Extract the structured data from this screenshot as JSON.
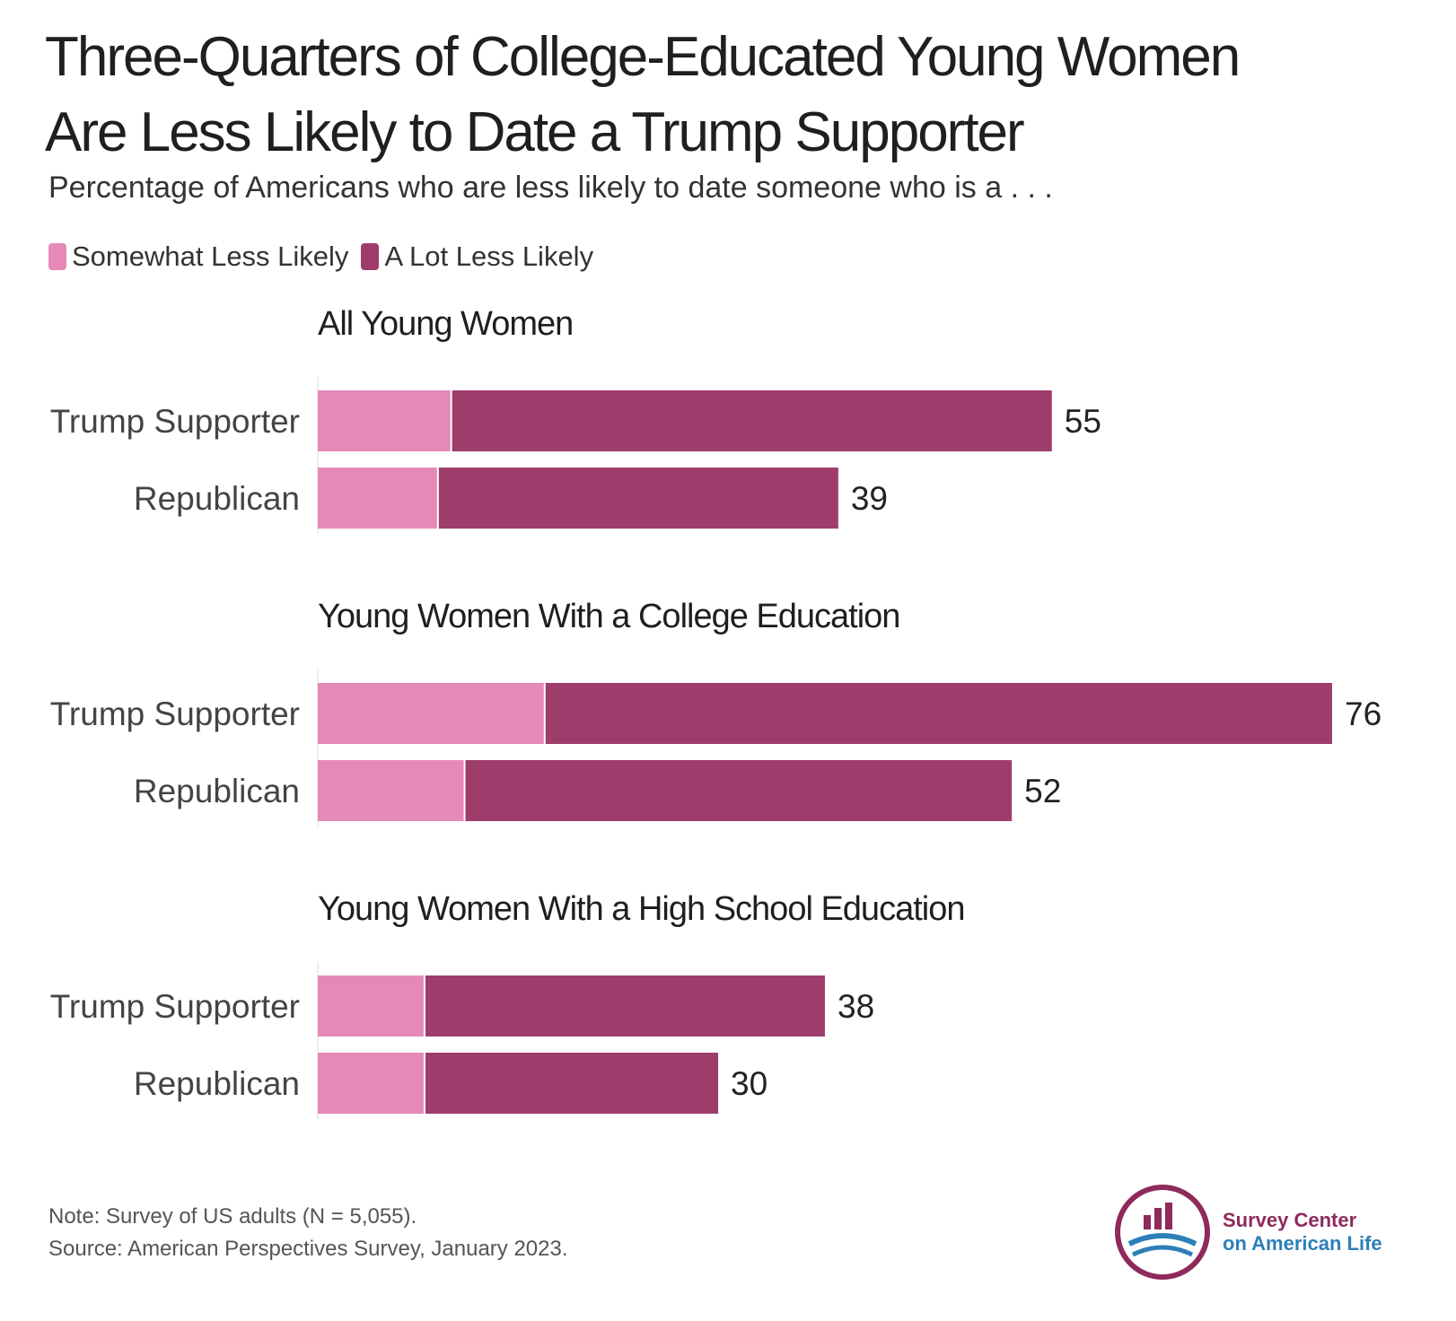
{
  "title_line1": "Three-Quarters of College-Educated Young Women",
  "title_line2": "Are Less Likely to Date a Trump Supporter",
  "subtitle": "Percentage of Americans who are less likely to date someone who is a . . .",
  "colors": {
    "somewhat": "#e589b8",
    "alot": "#9e3d6c",
    "axis": "#dddddd"
  },
  "note": "Note: Survey of US adults (N = 5,055).",
  "source": "Source: American Perspectives Survey, January 2023.",
  "logo": {
    "line1": "Survey Center",
    "line2": "on American Life"
  },
  "chart_data": {
    "type": "bar",
    "orientation": "horizontal",
    "stacked": true,
    "legend": [
      {
        "name": "Somewhat Less Likely",
        "color": "#e589b8"
      },
      {
        "name": "A Lot Less Likely",
        "color": "#9e3d6c"
      }
    ],
    "xlim": [
      0,
      80
    ],
    "panels": [
      {
        "title": "All Young Women",
        "rows": [
          {
            "label": "Trump Supporter",
            "somewhat": 10,
            "alot": 45,
            "total": 55
          },
          {
            "label": "Republican",
            "somewhat": 9,
            "alot": 30,
            "total": 39
          }
        ]
      },
      {
        "title": "Young Women With a College Education",
        "rows": [
          {
            "label": "Trump Supporter",
            "somewhat": 17,
            "alot": 59,
            "total": 76
          },
          {
            "label": "Republican",
            "somewhat": 11,
            "alot": 41,
            "total": 52
          }
        ]
      },
      {
        "title": "Young Women With a High School Education",
        "rows": [
          {
            "label": "Trump Supporter",
            "somewhat": 8,
            "alot": 30,
            "total": 38
          },
          {
            "label": "Republican",
            "somewhat": 8,
            "alot": 22,
            "total": 30
          }
        ]
      }
    ]
  }
}
